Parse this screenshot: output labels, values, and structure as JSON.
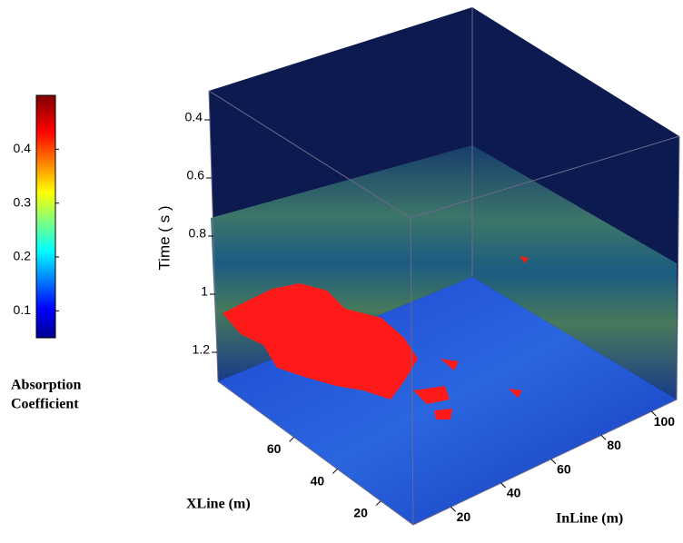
{
  "chart_data": {
    "type": "volume",
    "colorbar": {
      "label": [
        "Absorption",
        "Coefficient"
      ],
      "lim": [
        0.05,
        0.5
      ],
      "ticks": [
        0.1,
        0.2,
        0.3,
        0.4
      ]
    },
    "z_label": "Time ( s )",
    "zlim": [
      0.3,
      1.3
    ],
    "zticks": [
      0.4,
      0.6,
      0.8,
      1,
      1.2
    ],
    "x_label": "InLine (m)",
    "xlim": [
      5,
      110
    ],
    "xticks": [
      20,
      40,
      60,
      80,
      100
    ],
    "y_label": "XLine (m)",
    "ylim": [
      5,
      95
    ],
    "yticks": [
      20,
      40,
      60
    ]
  }
}
